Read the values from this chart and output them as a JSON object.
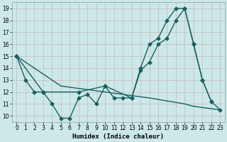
{
  "xlabel": "Humidex (Indice chaleur)",
  "bg_color": "#cce8e8",
  "grid_color": "#c8b8b8",
  "line_color": "#1a6060",
  "xlim": [
    -0.5,
    23.5
  ],
  "ylim": [
    9.5,
    19.5
  ],
  "xticks": [
    0,
    1,
    2,
    3,
    4,
    5,
    6,
    7,
    8,
    9,
    10,
    11,
    12,
    13,
    14,
    15,
    16,
    17,
    18,
    19,
    20,
    21,
    22,
    23
  ],
  "yticks": [
    10,
    11,
    12,
    13,
    14,
    15,
    16,
    17,
    18,
    19
  ],
  "series": [
    {
      "x": [
        0,
        1,
        2,
        3,
        4,
        5,
        6,
        7,
        8,
        9,
        10,
        11,
        12,
        13,
        14,
        15,
        16,
        17,
        18,
        19,
        20,
        21,
        22
      ],
      "y": [
        15,
        13,
        12,
        12,
        11,
        9.8,
        9.8,
        11.5,
        11.8,
        11.0,
        12.5,
        11.5,
        11.5,
        11.5,
        14.0,
        16.0,
        16.5,
        18.0,
        19.0,
        19.0,
        16.0,
        13.0,
        11.2
      ],
      "marker": "D",
      "markersize": 2.5,
      "linewidth": 1.0
    },
    {
      "x": [
        0,
        3,
        7,
        10,
        13,
        14,
        15,
        16,
        17,
        18,
        19,
        20,
        21,
        22,
        23
      ],
      "y": [
        15,
        12,
        12,
        12.5,
        11.5,
        13.8,
        14.5,
        16.0,
        16.5,
        18.0,
        19.0,
        16.0,
        13.0,
        11.2,
        10.5
      ],
      "marker": "D",
      "markersize": 2.5,
      "linewidth": 1.0
    },
    {
      "x": [
        0,
        5,
        10,
        15,
        19,
        20,
        21,
        22,
        23
      ],
      "y": [
        15,
        12.5,
        12.0,
        11.5,
        11.0,
        10.8,
        10.7,
        10.6,
        10.5
      ],
      "marker": null,
      "markersize": 0,
      "linewidth": 1.0
    }
  ]
}
